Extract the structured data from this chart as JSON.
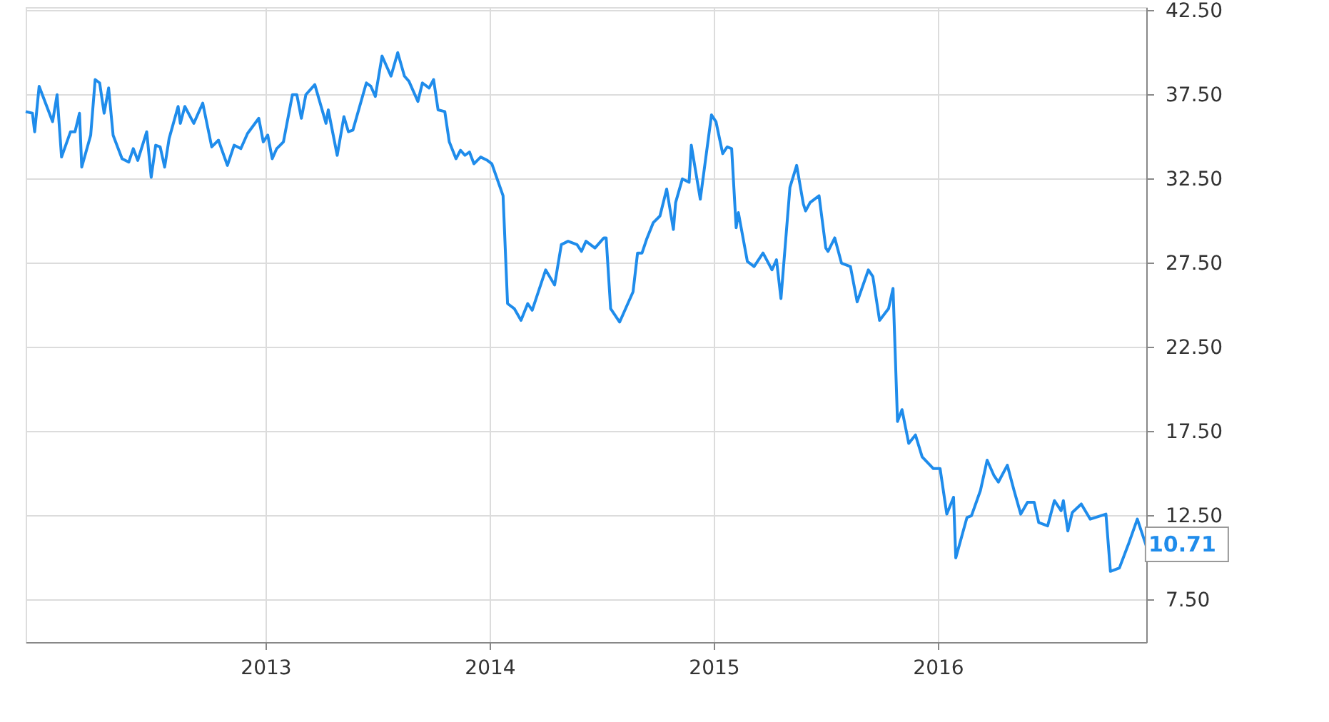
{
  "chart_data": {
    "type": "line",
    "x": [
      2011.93,
      2011.96,
      2011.97,
      2011.99,
      2012.03,
      2012.05,
      2012.07,
      2012.09,
      2012.13,
      2012.15,
      2012.17,
      2012.18,
      2012.22,
      2012.24,
      2012.26,
      2012.28,
      2012.3,
      2012.32,
      2012.36,
      2012.39,
      2012.41,
      2012.43,
      2012.47,
      2012.49,
      2012.51,
      2012.53,
      2012.55,
      2012.57,
      2012.61,
      2012.62,
      2012.64,
      2012.68,
      2012.72,
      2012.76,
      2012.79,
      2012.83,
      2012.86,
      2012.89,
      2012.92,
      2012.97,
      2012.99,
      2013.01,
      2013.03,
      2013.05,
      2013.08,
      2013.12,
      2013.14,
      2013.16,
      2013.18,
      2013.22,
      2013.27,
      2013.28,
      2013.32,
      2013.35,
      2013.37,
      2013.39,
      2013.45,
      2013.47,
      2013.49,
      2013.52,
      2013.56,
      2013.59,
      2013.62,
      2013.64,
      2013.68,
      2013.7,
      2013.73,
      2013.75,
      2013.77,
      2013.8,
      2013.82,
      2013.85,
      2013.87,
      2013.89,
      2013.91,
      2013.93,
      2013.96,
      2013.99,
      2014.01,
      2014.06,
      2014.08,
      2014.11,
      2014.14,
      2014.17,
      2014.19,
      2014.25,
      2014.29,
      2014.32,
      2014.35,
      2014.39,
      2014.41,
      2014.43,
      2014.47,
      2014.51,
      2014.52,
      2014.54,
      2014.58,
      2014.64,
      2014.66,
      2014.68,
      2014.7,
      2014.73,
      2014.76,
      2014.79,
      2014.82,
      2014.83,
      2014.86,
      2014.89,
      2014.9,
      2014.94,
      2014.99,
      2015.01,
      2015.04,
      2015.06,
      2015.08,
      2015.1,
      2015.11,
      2015.15,
      2015.18,
      2015.22,
      2015.26,
      2015.28,
      2015.3,
      2015.34,
      2015.37,
      2015.4,
      2015.41,
      2015.43,
      2015.47,
      2015.5,
      2015.51,
      2015.54,
      2015.57,
      2015.61,
      2015.64,
      2015.69,
      2015.71,
      2015.74,
      2015.78,
      2015.8,
      2015.82,
      2015.84,
      2015.87,
      2015.9,
      2015.93,
      2015.98,
      2016.01,
      2016.04,
      2016.07,
      2016.08,
      2016.13,
      2016.15,
      2016.19,
      2016.22,
      2016.25,
      2016.27,
      2016.31,
      2016.34,
      2016.37,
      2016.4,
      2016.43,
      2016.45,
      2016.49,
      2016.52,
      2016.55,
      2016.56,
      2016.58,
      2016.6,
      2016.64,
      2016.68,
      2016.75,
      2016.77,
      2016.81,
      2016.85,
      2016.89,
      2016.93
    ],
    "series": [
      {
        "color": "#1f8ceb",
        "values": [
          36.5,
          36.4,
          35.3,
          38.0,
          36.6,
          35.9,
          37.5,
          33.8,
          35.3,
          35.3,
          36.4,
          33.2,
          35.1,
          38.4,
          38.2,
          36.4,
          37.9,
          35.1,
          33.7,
          33.5,
          34.3,
          33.6,
          35.3,
          32.6,
          34.5,
          34.4,
          33.2,
          34.9,
          36.8,
          35.8,
          36.8,
          35.8,
          37.0,
          34.4,
          34.8,
          33.3,
          34.5,
          34.3,
          35.2,
          36.1,
          34.7,
          35.1,
          33.7,
          34.3,
          34.7,
          37.5,
          37.5,
          36.1,
          37.5,
          38.1,
          35.8,
          36.6,
          33.9,
          36.2,
          35.3,
          35.4,
          38.2,
          38.0,
          37.4,
          39.8,
          38.6,
          40.0,
          38.6,
          38.3,
          37.1,
          38.2,
          37.9,
          38.4,
          36.6,
          36.5,
          34.7,
          33.7,
          34.2,
          33.9,
          34.1,
          33.4,
          33.8,
          33.6,
          33.4,
          31.5,
          25.1,
          24.8,
          24.1,
          25.1,
          24.7,
          27.1,
          26.2,
          28.6,
          28.8,
          28.6,
          28.2,
          28.8,
          28.4,
          29.0,
          29.0,
          24.8,
          24.0,
          25.8,
          28.1,
          28.1,
          28.9,
          29.9,
          30.3,
          31.9,
          29.5,
          31.1,
          32.5,
          32.3,
          34.5,
          31.3,
          36.3,
          35.9,
          34.0,
          34.4,
          34.3,
          29.6,
          30.5,
          27.6,
          27.3,
          28.1,
          27.1,
          27.7,
          25.4,
          32.0,
          33.3,
          31.0,
          30.6,
          31.1,
          31.5,
          28.4,
          28.2,
          29.0,
          27.5,
          27.3,
          25.2,
          27.1,
          26.7,
          24.1,
          24.8,
          26.0,
          18.1,
          18.8,
          16.8,
          17.3,
          16.0,
          15.3,
          15.3,
          12.6,
          13.6,
          10.0,
          12.4,
          12.5,
          14.0,
          15.8,
          14.9,
          14.5,
          15.5,
          14.0,
          12.6,
          13.3,
          13.3,
          12.1,
          11.9,
          13.4,
          12.8,
          13.4,
          11.6,
          12.7,
          13.2,
          12.3,
          12.6,
          9.2,
          9.4,
          10.8,
          12.3,
          10.71
        ]
      }
    ],
    "value_labels": [
      null,
      null,
      null,
      null,
      null,
      null,
      null,
      null,
      null,
      null,
      null,
      null,
      null,
      null,
      null,
      null,
      null,
      null,
      null,
      null,
      null,
      null,
      null,
      null,
      null,
      null,
      null,
      null,
      null,
      null,
      null,
      null,
      null,
      null,
      null,
      null,
      null,
      null,
      null,
      null,
      null,
      null,
      null,
      null,
      null,
      null,
      null,
      null,
      null,
      null,
      null,
      null,
      null,
      null,
      null,
      null,
      null,
      null,
      null,
      null,
      null,
      null,
      null,
      null,
      null,
      null,
      null,
      null,
      null,
      null,
      null,
      null,
      null,
      null,
      null,
      null,
      null,
      null,
      null,
      null,
      null,
      null,
      null,
      null,
      null,
      null,
      null,
      null,
      null,
      null,
      null,
      null,
      null,
      null,
      null,
      null,
      null,
      null,
      null,
      null,
      null,
      null,
      null,
      null,
      null,
      null,
      null,
      null,
      null,
      null,
      null,
      null,
      null,
      null,
      null,
      null,
      null,
      null,
      null,
      null,
      null,
      null,
      null,
      null,
      null,
      null,
      null,
      null,
      null,
      null,
      null,
      null,
      null,
      null,
      null,
      null,
      null,
      null,
      null,
      null,
      null,
      null,
      null,
      null,
      null,
      null,
      null,
      null,
      null,
      null,
      null,
      null,
      null,
      null,
      null,
      null,
      null,
      null,
      null,
      null,
      null,
      null,
      null,
      null,
      null,
      null,
      null,
      null,
      null,
      null,
      null,
      null,
      null,
      "10.71"
    ],
    "xlim": [
      2011.93,
      2016.93
    ],
    "xticks": [
      2013,
      2014,
      2015,
      2016
    ],
    "ylim": [
      5,
      42.7
    ],
    "yticks": [
      {
        "value": 7.5,
        "label": "7.50"
      },
      {
        "value": 12.5,
        "label": "12.50"
      },
      {
        "value": 17.5,
        "label": "17.50"
      },
      {
        "value": 22.5,
        "label": "22.50"
      },
      {
        "value": 27.5,
        "label": "27.50"
      },
      {
        "value": 32.5,
        "label": "32.50"
      },
      {
        "value": 37.5,
        "label": "37.50"
      },
      {
        "value": 42.5,
        "label": "42.50"
      }
    ],
    "grid": true,
    "marker": "none",
    "line_style": "solid"
  }
}
